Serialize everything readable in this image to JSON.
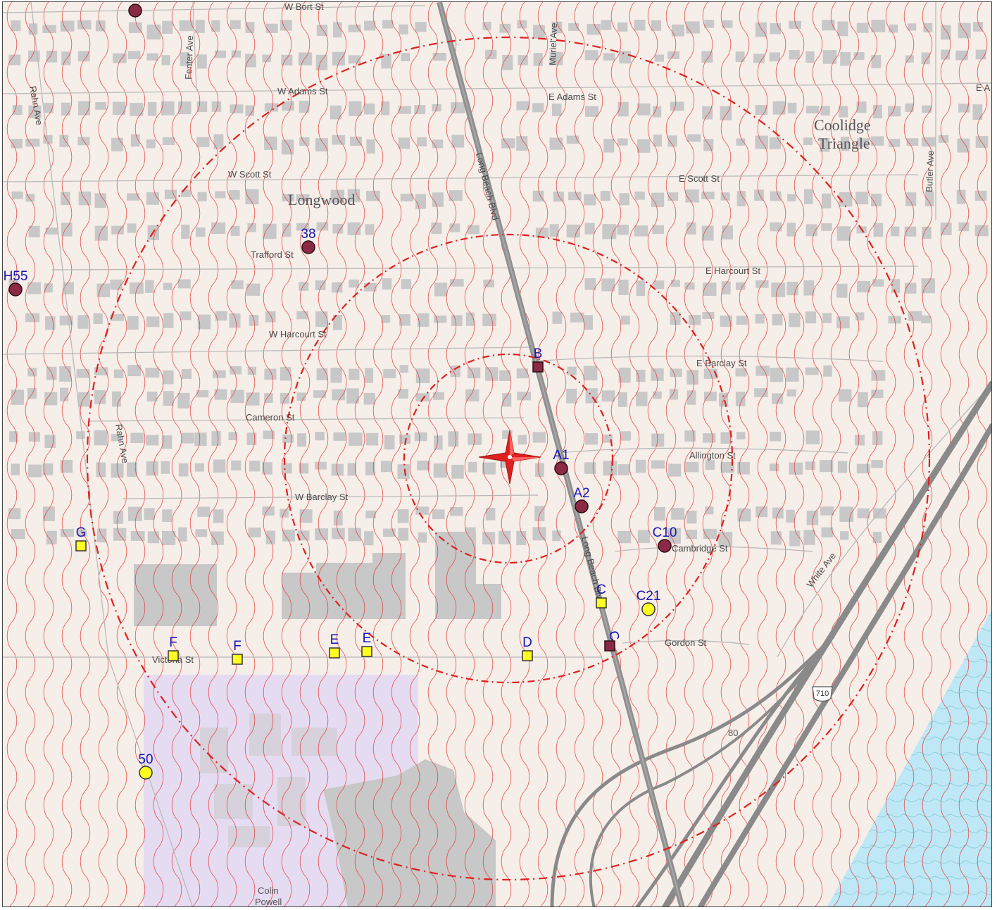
{
  "map": {
    "colors": {
      "background": "#f6eee8",
      "building": "#c8c8c8",
      "road": "#8f8f8f",
      "highway": "#8a8a8a",
      "contour": "#e03030",
      "ring": "#e02020",
      "water": "#bfe8f6",
      "school_zone": "#e6dcf2",
      "site_marker": "#8a2a44",
      "other_marker": "#ffff22",
      "site_label": "#1616b0"
    },
    "neighborhoods": [
      "Longwood",
      "Coolidge",
      "Triangle"
    ],
    "streets": [
      "W Bort St",
      "Fenter Ave",
      "W Adams St",
      "E Adams St",
      "Muriel Ave",
      "Rahn Ave",
      "W Scott St",
      "E Scott St",
      "Butler Ave",
      "Trafford St",
      "E Harcourt St",
      "W Harcourt St",
      "E Barclay St",
      "Cameron St",
      "Allington St",
      "Rahn Ave",
      "W Barclay St",
      "Long Beach Blvd",
      "Long Beach Blvd",
      "Cambridge St",
      "White Ave",
      "Gordon St",
      "Victoria St",
      "E A"
    ],
    "highway_shield": "710",
    "highway_number": "80",
    "school_label": [
      "Colin",
      "Powell"
    ],
    "center_icon": "compass-star-icon",
    "rings": [
      "inner-ring",
      "middle-ring",
      "outer-ring"
    ],
    "sites": [
      {
        "label": "",
        "kind": "dot"
      },
      {
        "label": "38",
        "kind": "dot"
      },
      {
        "label": "H55",
        "kind": "dot"
      },
      {
        "label": "B",
        "kind": "square-red"
      },
      {
        "label": "A1",
        "kind": "dot"
      },
      {
        "label": "A2",
        "kind": "dot"
      },
      {
        "label": "C10",
        "kind": "dot"
      },
      {
        "label": "C",
        "kind": "square-yellow"
      },
      {
        "label": "C21",
        "kind": "dot-yellow"
      },
      {
        "label": "C",
        "kind": "square-red"
      },
      {
        "label": "D",
        "kind": "square-yellow"
      },
      {
        "label": "E",
        "kind": "square-yellow"
      },
      {
        "label": "E",
        "kind": "square-yellow"
      },
      {
        "label": "F",
        "kind": "square-yellow"
      },
      {
        "label": "F",
        "kind": "square-yellow"
      },
      {
        "label": "G",
        "kind": "square-yellow"
      },
      {
        "label": "50",
        "kind": "dot-yellow"
      }
    ]
  }
}
